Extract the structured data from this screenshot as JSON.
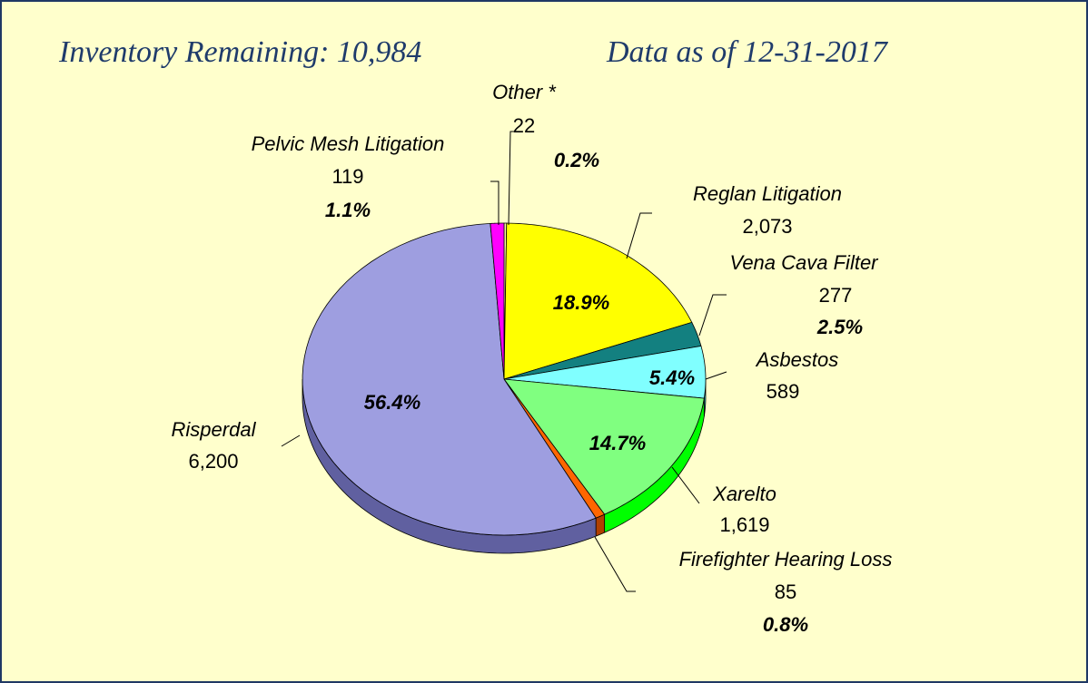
{
  "chart_data": {
    "type": "pie",
    "title": "Inventory Remaining: 10,984",
    "subtitle": "Data as of 12-31-2017",
    "categories": [
      "Other *",
      "Reglan Litigation",
      "Vena Cava Filter",
      "Asbestos",
      "Xarelto",
      "Firefighter Hearing Loss",
      "Risperdal",
      "Pelvic Mesh Litigation"
    ],
    "values": [
      22,
      2073,
      277,
      589,
      1619,
      85,
      6200,
      119
    ],
    "value_labels": [
      "22",
      "2,073",
      "277",
      "589",
      "1,619",
      "85",
      "6,200",
      "119"
    ],
    "percents": [
      0.2,
      18.9,
      2.5,
      5.4,
      14.7,
      0.8,
      56.4,
      1.1
    ],
    "percent_labels": [
      "0.2%",
      "18.9%",
      "2.5%",
      "5.4%",
      "14.7%",
      "0.8%",
      "56.4%",
      "1.1%"
    ],
    "colors": [
      "#ffffa0",
      "#ffff00",
      "#138080",
      "#80ffff",
      "#80ff80",
      "#ff6600",
      "#9e9ee0",
      "#ff00ff"
    ],
    "side_colors": [
      "#c0c080",
      "#c0c000",
      "#0c5050",
      "#40c0c0",
      "#00ff00",
      "#b04000",
      "#6060a0",
      "#b000b0"
    ]
  }
}
